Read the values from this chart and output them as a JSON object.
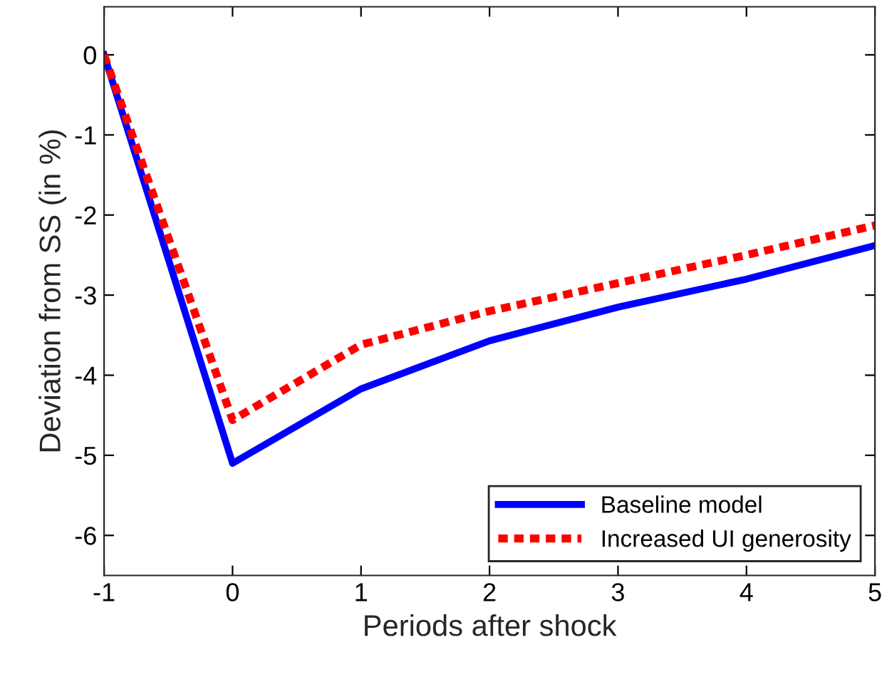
{
  "chart_data": {
    "type": "line",
    "xlabel": "Periods after shock",
    "ylabel": "Deviation from SS (in %)",
    "x": [
      -1,
      0,
      1,
      2,
      3,
      4,
      5
    ],
    "series": [
      {
        "name": "Baseline model",
        "color": "#0000ff",
        "line_style": "solid",
        "values": [
          0,
          -5.1,
          -4.17,
          -3.57,
          -3.15,
          -2.8,
          -2.38
        ]
      },
      {
        "name": "Increased UI generosity",
        "color": "#ff0000",
        "line_style": "dotted",
        "values": [
          0,
          -4.56,
          -3.62,
          -3.2,
          -2.85,
          -2.5,
          -2.13
        ]
      }
    ],
    "xlim": [
      -1,
      5
    ],
    "xticks": [
      -1,
      0,
      1,
      2,
      3,
      4,
      5
    ],
    "ylim": [
      -6.5,
      0.6
    ],
    "yticks": [
      -6,
      -5,
      -4,
      -3,
      -2,
      -1,
      0
    ],
    "grid": false,
    "legend": "bottom right",
    "marker": "none"
  }
}
